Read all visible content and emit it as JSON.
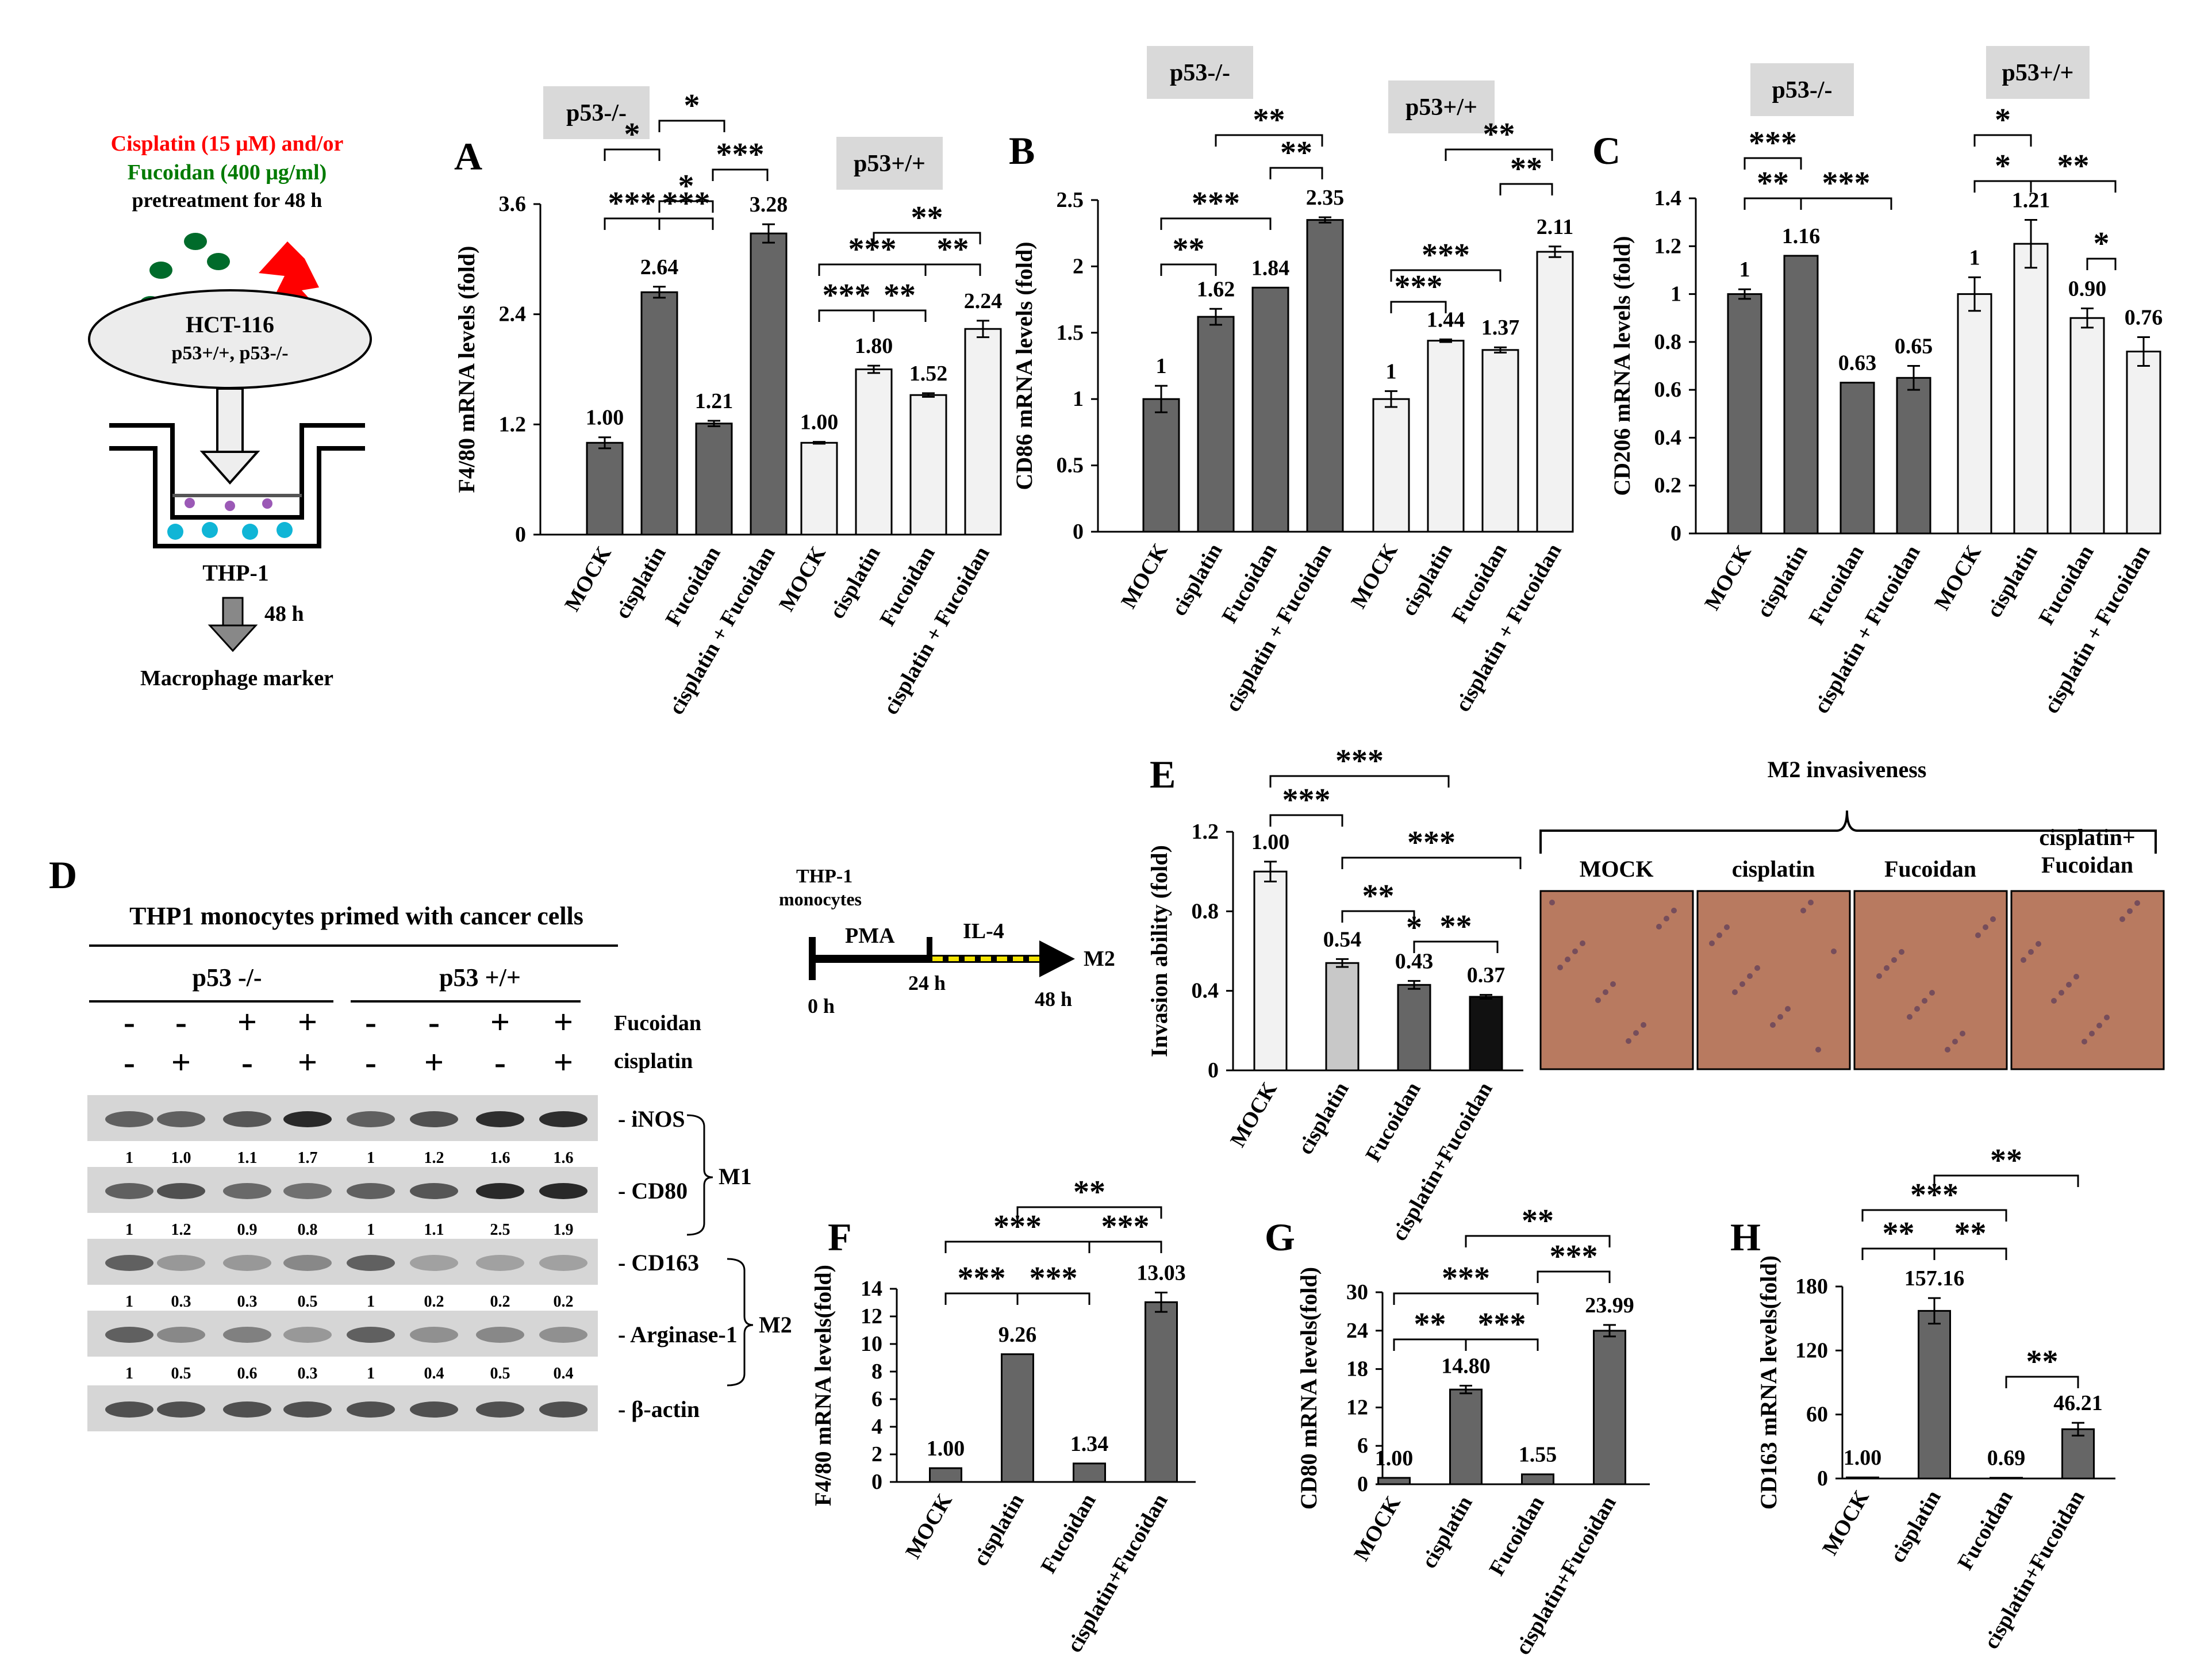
{
  "colors": {
    "dark_bar": "#666666",
    "light_bar": "#f2f2f2",
    "gray_bar": "#c8c8c8",
    "black_bar": "#111111",
    "p53_box": "#d9d9d9",
    "red": "#ff0000",
    "green": "#007a00",
    "dot_green": "#006b2b",
    "blot_bg": "#d6d6d6",
    "micro_bg": "#b87a60"
  },
  "panel_letters": {
    "A": "A",
    "B": "B",
    "C": "C",
    "D": "D",
    "E": "E",
    "F": "F",
    "G": "G",
    "H": "H"
  },
  "schematic": {
    "line1": "Cisplatin (15 μM) and/or",
    "line2": "Fucoidan (400 μg/ml)",
    "line3": "pretreatment for 48 h",
    "cells": "HCT-116",
    "cells_genotype": "p53+/+, p53-/-",
    "thp1": "THP-1",
    "time": "48 h",
    "readout": "Macrophage marker"
  },
  "timeline": {
    "title_1": "THP-1",
    "title_2": "monocytes",
    "pma": "PMA",
    "il4": "IL-4",
    "m2": "M2",
    "t0": "0 h",
    "t24": "24 h",
    "t48": "48 h"
  },
  "western": {
    "title": "THP1 monocytes primed with cancer cells",
    "group_left": "p53 -/-",
    "group_right": "p53 +/+",
    "fucoidan_label": "Fucoidan",
    "cisplatin_label": "cisplatin",
    "fucoidan_signs": [
      "-",
      "-",
      "+",
      "+",
      "-",
      "-",
      "+",
      "+"
    ],
    "cisplatin_signs": [
      "-",
      "+",
      "-",
      "+",
      "-",
      "+",
      "-",
      "+"
    ],
    "blots": [
      {
        "name": "iNOS",
        "values": [
          "1",
          "1.0",
          "1.1",
          "1.7",
          "1",
          "1.2",
          "1.6",
          "1.6"
        ]
      },
      {
        "name": "CD80",
        "values": [
          "1",
          "1.2",
          "0.9",
          "0.8",
          "1",
          "1.1",
          "2.5",
          "1.9"
        ]
      },
      {
        "name": "CD163",
        "values": [
          "1",
          "0.3",
          "0.3",
          "0.5",
          "1",
          "0.2",
          "0.2",
          "0.2"
        ]
      },
      {
        "name": "Arginase-1",
        "values": [
          "1",
          "0.5",
          "0.6",
          "0.3",
          "1",
          "0.4",
          "0.5",
          "0.4"
        ]
      },
      {
        "name": "β-actin",
        "values": []
      }
    ],
    "m1": "M1",
    "m2": "M2"
  },
  "micrographs": {
    "title": "M2 invasiveness",
    "labels": [
      "MOCK",
      "cisplatin",
      "Fucoidan",
      "cisplatin+\nFucoidan"
    ]
  },
  "chart_data": [
    {
      "panel": "A",
      "type": "bar",
      "ylabel": "F4/80 mRNA levels (fold)",
      "ylim": [
        0,
        3.6
      ],
      "yticks": [
        "0",
        "1.2",
        "2.4",
        "3.6"
      ],
      "groups": [
        {
          "name": "p53-/-",
          "label": "p53-/-",
          "style": "dark",
          "categories": [
            "MOCK",
            "cisplatin",
            "Fucoidan",
            "cisplatin + Fucoidan"
          ],
          "values": [
            1.0,
            2.64,
            1.21,
            3.28
          ],
          "errors": [
            0.06,
            0.06,
            0.03,
            0.1
          ],
          "labels": [
            "1.00",
            "2.64",
            "1.21",
            "3.28"
          ]
        },
        {
          "name": "p53+/+",
          "label": "p53+/+",
          "style": "light",
          "categories": [
            "MOCK",
            "cisplatin",
            "Fucoidan",
            "cisplatin + Fucoidan"
          ],
          "values": [
            1.0,
            1.8,
            1.52,
            2.24
          ],
          "errors": [
            0.01,
            0.04,
            0.02,
            0.09
          ],
          "labels": [
            "1.00",
            "1.80",
            "1.52",
            "2.24"
          ]
        }
      ],
      "significance": [
        "*",
        "*",
        "***",
        "***",
        "***",
        "*",
        "***",
        "**",
        "***",
        "**"
      ]
    },
    {
      "panel": "B",
      "type": "bar",
      "ylabel": "CD86 mRNA levels (fold)",
      "ylim": [
        0,
        2.5
      ],
      "yticks": [
        "0",
        "0.5",
        "1",
        "1.5",
        "2",
        "2.5"
      ],
      "groups": [
        {
          "name": "p53-/-",
          "label": "p53-/-",
          "style": "dark",
          "categories": [
            "MOCK",
            "cisplatin",
            "Fucoidan",
            "cisplatin + Fucoidan"
          ],
          "values": [
            1,
            1.62,
            1.84,
            2.35
          ],
          "errors": [
            0.1,
            0.06,
            0,
            0.02
          ],
          "labels": [
            "1",
            "1.62",
            "1.84",
            "2.35"
          ]
        },
        {
          "name": "p53+/+",
          "label": "p53+/+",
          "style": "light",
          "categories": [
            "MOCK",
            "cisplatin",
            "Fucoidan",
            "cisplatin + Fucoidan"
          ],
          "values": [
            1,
            1.44,
            1.37,
            2.11
          ],
          "errors": [
            0.06,
            0.01,
            0.02,
            0.04
          ],
          "labels": [
            "1",
            "1.44",
            "1.37",
            "2.11"
          ]
        }
      ],
      "significance": [
        "**",
        "***",
        "**",
        "**",
        "***",
        "***",
        "**",
        "**"
      ]
    },
    {
      "panel": "C",
      "type": "bar",
      "ylabel": "CD206 mRNA levels (fold)",
      "ylim": [
        0,
        1.4
      ],
      "yticks": [
        "0",
        "0.2",
        "0.4",
        "0.6",
        "0.8",
        "1",
        "1.2",
        "1.4"
      ],
      "groups": [
        {
          "name": "p53-/-",
          "label": "p53-/-",
          "style": "dark",
          "categories": [
            "MOCK",
            "cisplatin",
            "Fucoidan",
            "cisplatin + Fucoidan"
          ],
          "values": [
            1,
            1.16,
            0.63,
            0.65
          ],
          "errors": [
            0.02,
            0,
            0,
            0.05
          ],
          "labels": [
            "1",
            "1.16",
            "0.63",
            "0.65"
          ]
        },
        {
          "name": "p53+/+",
          "label": "p53+/+",
          "style": "light",
          "categories": [
            "MOCK",
            "cisplatin",
            "Fucoidan",
            "cisplatin + Fucoidan"
          ],
          "values": [
            1,
            1.21,
            0.9,
            0.76
          ],
          "errors": [
            0.07,
            0.1,
            0.04,
            0.06
          ],
          "labels": [
            "1",
            "1.21",
            "0.90",
            "0.76"
          ]
        }
      ],
      "significance": [
        "***",
        "**",
        "***",
        "*",
        "*",
        "**",
        "*"
      ]
    },
    {
      "panel": "E",
      "type": "bar",
      "ylabel": "Invasion ability (fold)",
      "ylim": [
        0,
        1.2
      ],
      "yticks": [
        "0",
        "0.4",
        "0.8",
        "1.2"
      ],
      "categories": [
        "MOCK",
        "cisplatin",
        "Fucoidan",
        "cisplatin+Fucoidan"
      ],
      "values": [
        1.0,
        0.54,
        0.43,
        0.37
      ],
      "errors": [
        0.05,
        0.02,
        0.02,
        0.01
      ],
      "labels": [
        "1.00",
        "0.54",
        "0.43",
        "0.37"
      ],
      "significance": [
        "***",
        "***",
        "***",
        "**",
        "*",
        "**"
      ]
    },
    {
      "panel": "F",
      "type": "bar",
      "ylabel": "F4/80 mRNA levels(fold)",
      "ylim": [
        0,
        14
      ],
      "yticks": [
        "0",
        "2",
        "4",
        "6",
        "8",
        "10",
        "12",
        "14"
      ],
      "categories": [
        "MOCK",
        "cisplatin",
        "Fucoidan",
        "cisplatin+Fucoidan"
      ],
      "values": [
        1.0,
        9.26,
        1.34,
        13.03
      ],
      "errors": [
        0,
        0,
        0,
        0.7
      ],
      "labels": [
        "1.00",
        "9.26",
        "1.34",
        "13.03"
      ],
      "significance": [
        "**",
        "***",
        "***",
        "***",
        "***"
      ]
    },
    {
      "panel": "G",
      "type": "bar",
      "ylabel": "CD80 mRNA levels(fold)",
      "ylim": [
        0,
        30
      ],
      "yticks": [
        "0",
        "6",
        "12",
        "18",
        "24",
        "30"
      ],
      "categories": [
        "MOCK",
        "cisplatin",
        "Fucoidan",
        "cisplatin+Fucoidan"
      ],
      "values": [
        1.0,
        14.8,
        1.55,
        23.99
      ],
      "errors": [
        0,
        0.6,
        0,
        0.9
      ],
      "labels": [
        "1.00",
        "14.80",
        "1.55",
        "23.99"
      ],
      "significance": [
        "**",
        "***",
        "**",
        "***",
        "***"
      ]
    },
    {
      "panel": "H",
      "type": "bar",
      "ylabel": "CD163 mRNA levels(fold)",
      "ylim": [
        0,
        180
      ],
      "yticks": [
        "0",
        "60",
        "120",
        "180"
      ],
      "categories": [
        "MOCK",
        "cisplatin",
        "Fucoidan",
        "cisplatin+Fucoidan"
      ],
      "values": [
        1.0,
        157.16,
        0.69,
        46.21
      ],
      "errors": [
        0,
        12,
        0,
        6
      ],
      "labels": [
        "1.00",
        "157.16",
        "0.69",
        "46.21"
      ],
      "significance": [
        "**",
        "***",
        "**",
        "**",
        "**"
      ]
    }
  ]
}
